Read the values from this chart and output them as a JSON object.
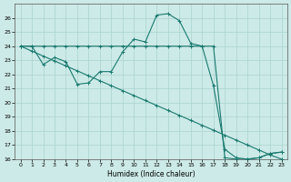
{
  "background_color": "#cceae7",
  "grid_color": "#aad4d0",
  "line_color": "#1a7a6e",
  "marker_style": "+",
  "xlabel": "Humidex (Indice chaleur)",
  "ylim": [
    16,
    27
  ],
  "xlim": [
    -0.5,
    23.5
  ],
  "yticks": [
    16,
    17,
    18,
    19,
    20,
    21,
    22,
    23,
    24,
    25,
    26
  ],
  "xticks": [
    0,
    1,
    2,
    3,
    4,
    5,
    6,
    7,
    8,
    9,
    10,
    11,
    12,
    13,
    14,
    15,
    16,
    17,
    18,
    19,
    20,
    21,
    22,
    23
  ],
  "series": [
    {
      "x": [
        0,
        1,
        2,
        3,
        4,
        5,
        6,
        7,
        8,
        9,
        10,
        11,
        12,
        13,
        14,
        15,
        16,
        17,
        18,
        19,
        20,
        21,
        22,
        23
      ],
      "y": [
        24,
        24,
        24,
        24,
        24,
        24,
        24,
        24,
        24,
        24,
        24,
        24,
        24,
        24,
        24,
        24,
        24,
        24,
        16.1,
        16.0,
        16.0,
        16.1,
        16.4,
        16.5
      ]
    },
    {
      "x": [
        0,
        1,
        2,
        3,
        4,
        5,
        6,
        7,
        8,
        9,
        10,
        11,
        12,
        13,
        14,
        15,
        16,
        17,
        18,
        19,
        20,
        21,
        22,
        23
      ],
      "y": [
        24.0,
        23.65,
        23.3,
        22.95,
        22.6,
        22.25,
        21.9,
        21.55,
        21.2,
        20.85,
        20.5,
        20.15,
        19.8,
        19.45,
        19.1,
        18.75,
        18.4,
        18.05,
        17.7,
        17.35,
        17.0,
        16.65,
        16.3,
        16.0
      ]
    },
    {
      "x": [
        0,
        1,
        2,
        3,
        4,
        5,
        6,
        7,
        8,
        9,
        10,
        11,
        12,
        13,
        14,
        15,
        16,
        17,
        18,
        19,
        20,
        21,
        22,
        23
      ],
      "y": [
        24,
        24,
        22.7,
        23.2,
        22.9,
        21.3,
        21.4,
        22.2,
        22.2,
        23.6,
        24.5,
        24.3,
        26.2,
        26.3,
        25.8,
        24.2,
        24.0,
        21.2,
        16.7,
        16.1,
        16.0,
        16.1,
        16.4,
        16.5
      ]
    }
  ]
}
